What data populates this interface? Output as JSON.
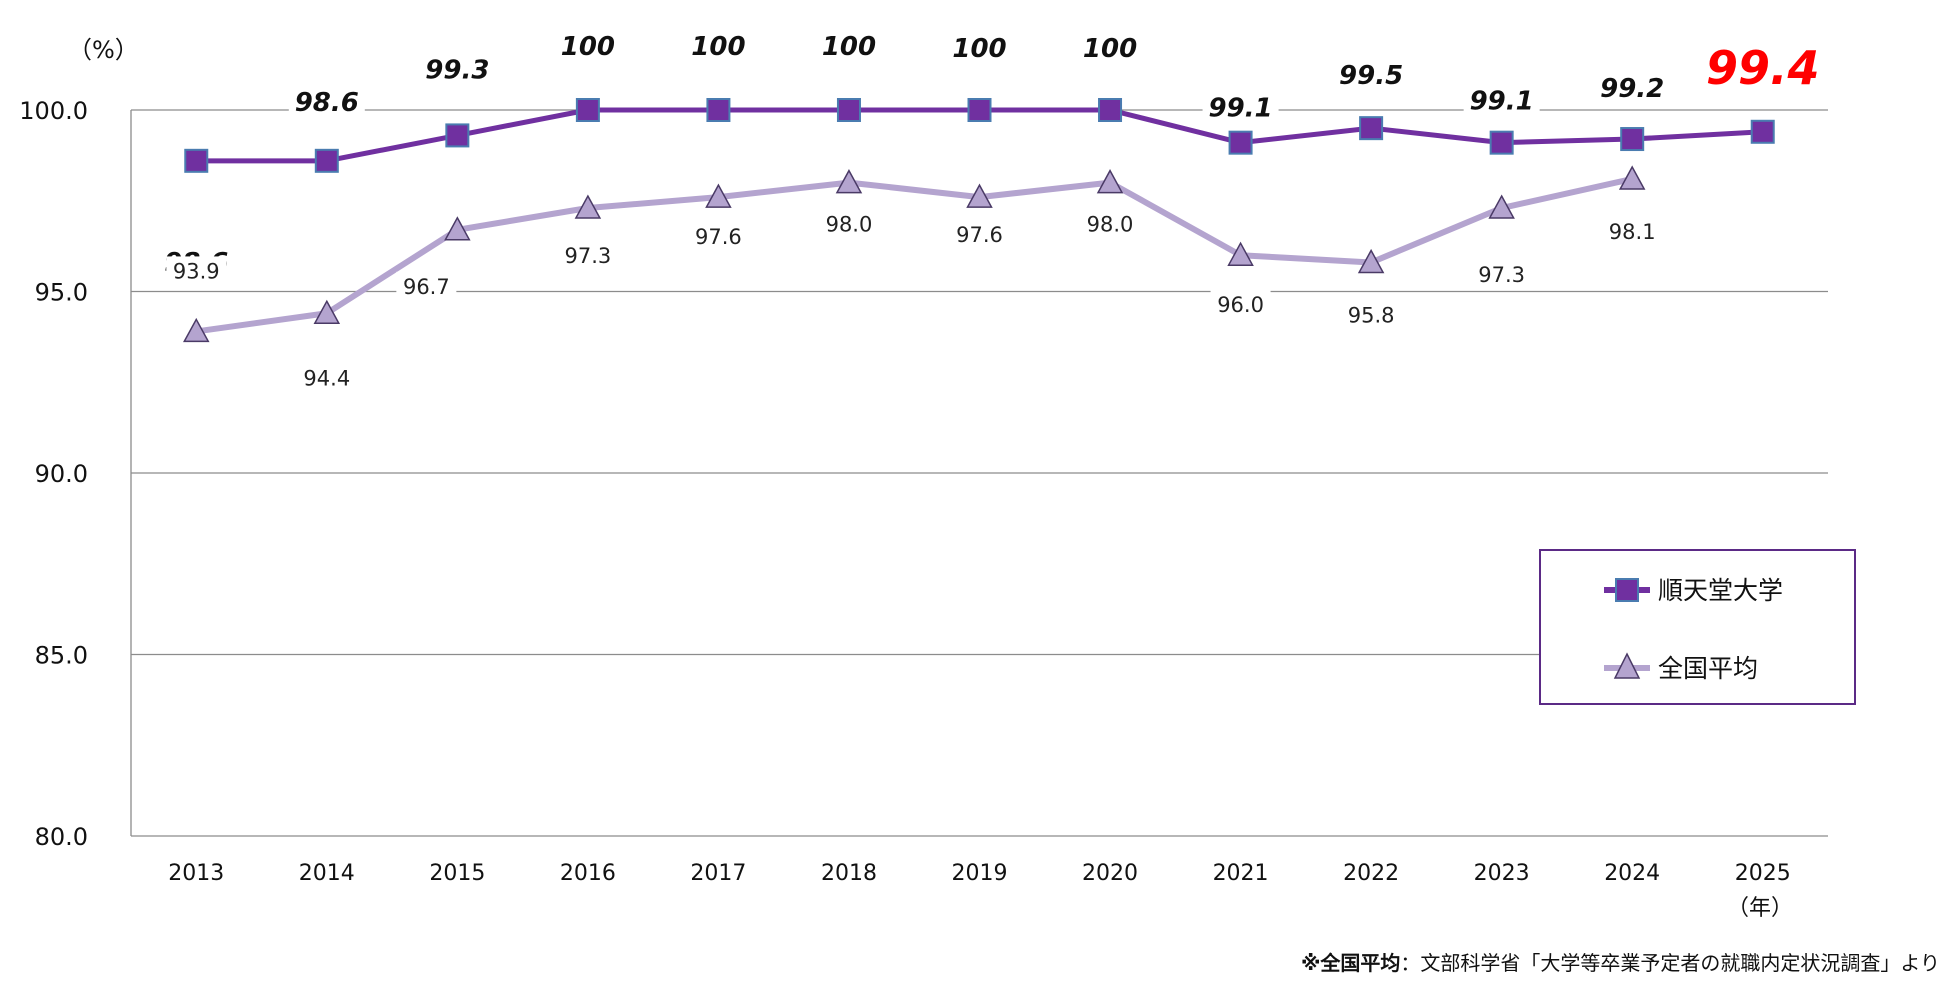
{
  "chart_data": {
    "type": "line",
    "y_unit": "（%）",
    "x_unit": "（年）",
    "ylim": [
      80,
      100
    ],
    "yticks": [
      "100.0",
      "95.0",
      "90.0",
      "85.0",
      "80.0"
    ],
    "ytick_values": [
      100,
      95,
      90,
      85,
      80
    ],
    "categories": [
      "2013",
      "2014",
      "2015",
      "2016",
      "2017",
      "2018",
      "2019",
      "2020",
      "2021",
      "2022",
      "2023",
      "2024",
      "2025"
    ],
    "grid": true,
    "legend_placement": "right",
    "series": [
      {
        "name": "順天堂大学",
        "color": "#7030a0",
        "marker_fill": "#7030a0",
        "marker_stroke": "#4a7cb0",
        "marker": "square",
        "values": [
          98.6,
          98.6,
          99.3,
          100,
          100,
          100,
          100,
          100,
          99.1,
          99.5,
          99.1,
          99.2,
          99.4
        ],
        "labels": [
          "98.6",
          "98.6",
          "99.3",
          "100",
          "100",
          "100",
          "100",
          "100",
          "99.1",
          "99.5",
          "99.1",
          "99.2",
          "99.4"
        ]
      },
      {
        "name": "全国平均",
        "color": "#b4a4cf",
        "marker_fill": "#b4a4cf",
        "marker_stroke": "#4a3a66",
        "marker": "triangle",
        "values": [
          93.9,
          94.4,
          96.7,
          97.3,
          97.6,
          98.0,
          97.6,
          98.0,
          96.0,
          95.8,
          97.3,
          98.1,
          null
        ],
        "labels": [
          "93.9",
          "94.4",
          "96.7",
          "97.3",
          "97.6",
          "98.0",
          "97.6",
          "98.0",
          "96.0",
          "95.8",
          "97.3",
          "98.1",
          ""
        ]
      }
    ],
    "highlight_color": "#ff0000"
  },
  "source_note": {
    "bold": "※全国平均",
    "text": "：文部科学省「大学等卒業予定者の就職内定状況調査」より"
  }
}
